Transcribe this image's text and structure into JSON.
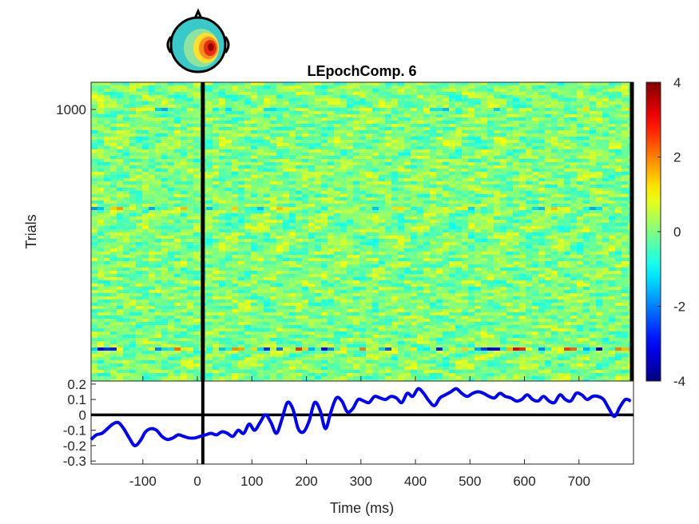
{
  "chart_data": [
    {
      "type": "heatmap",
      "title": "LEpochComp. 6",
      "ylabel": "Trials",
      "xlim": [
        -195,
        800
      ],
      "ylim": [
        0,
        1100
      ],
      "y_ticks": [
        {
          "value": 1000,
          "label": "1000"
        }
      ],
      "vertical_markers": [
        10,
        800
      ],
      "colormap": "jet",
      "colorbar": {
        "lim": [
          -4,
          4
        ],
        "ticks": [
          {
            "value": 4,
            "label": "4"
          },
          {
            "value": 2,
            "label": "2"
          },
          {
            "value": 0,
            "label": "0"
          },
          {
            "value": -2,
            "label": "-2"
          },
          {
            "value": -4,
            "label": "-4"
          }
        ]
      },
      "bands": [
        {
          "trials": [
            118,
            132
          ],
          "intensity": 3.0
        },
        {
          "trials": [
            640,
            650
          ],
          "intensity": 1.6
        },
        {
          "trials": [
            1000,
            1010
          ],
          "intensity": 1.4
        }
      ]
    },
    {
      "type": "line",
      "xlabel": "Time (ms)",
      "xlim": [
        -195,
        800
      ],
      "ylim": [
        -0.32,
        0.22
      ],
      "grid": false,
      "x_ticks": [
        {
          "value": -100,
          "label": "-100"
        },
        {
          "value": 0,
          "label": "0"
        },
        {
          "value": 100,
          "label": "100"
        },
        {
          "value": 200,
          "label": "200"
        },
        {
          "value": 300,
          "label": "300"
        },
        {
          "value": 400,
          "label": "400"
        },
        {
          "value": 500,
          "label": "500"
        },
        {
          "value": 600,
          "label": "600"
        },
        {
          "value": 700,
          "label": "700"
        }
      ],
      "y_ticks": [
        {
          "value": 0.2,
          "label": "0.2"
        },
        {
          "value": 0.1,
          "label": "0.1"
        },
        {
          "value": 0,
          "label": "0"
        },
        {
          "value": -0.1,
          "label": "-0.1"
        },
        {
          "value": -0.2,
          "label": "-0.2"
        },
        {
          "value": -0.3,
          "label": "-0.3"
        }
      ],
      "zero_line": 0,
      "vertical_markers": [
        10
      ],
      "series": [
        {
          "color": "#0000ff",
          "x": [
            -195,
            -185,
            -175,
            -165,
            -155,
            -145,
            -135,
            -125,
            -115,
            -105,
            -95,
            -85,
            -75,
            -65,
            -55,
            -45,
            -35,
            -25,
            -15,
            -5,
            5,
            15,
            25,
            35,
            45,
            55,
            65,
            75,
            85,
            95,
            105,
            115,
            125,
            135,
            145,
            155,
            165,
            175,
            185,
            195,
            205,
            215,
            225,
            235,
            245,
            255,
            265,
            275,
            285,
            295,
            305,
            315,
            325,
            335,
            345,
            355,
            365,
            375,
            385,
            395,
            405,
            415,
            425,
            435,
            445,
            455,
            465,
            475,
            485,
            495,
            505,
            515,
            525,
            535,
            545,
            555,
            565,
            575,
            585,
            595,
            605,
            615,
            625,
            635,
            645,
            655,
            665,
            675,
            685,
            695,
            705,
            715,
            725,
            735,
            745,
            755,
            765,
            775,
            785,
            795
          ],
          "y": [
            -0.16,
            -0.13,
            -0.12,
            -0.09,
            -0.06,
            -0.05,
            -0.09,
            -0.15,
            -0.2,
            -0.17,
            -0.11,
            -0.09,
            -0.1,
            -0.14,
            -0.16,
            -0.15,
            -0.13,
            -0.14,
            -0.15,
            -0.15,
            -0.14,
            -0.13,
            -0.12,
            -0.13,
            -0.11,
            -0.12,
            -0.14,
            -0.1,
            -0.12,
            -0.06,
            -0.1,
            -0.05,
            0.0,
            -0.05,
            -0.12,
            -0.03,
            0.08,
            0.04,
            -0.09,
            -0.11,
            -0.04,
            0.08,
            0.03,
            -0.09,
            0.02,
            0.11,
            0.09,
            0.02,
            0.04,
            0.1,
            0.09,
            0.08,
            0.12,
            0.11,
            0.1,
            0.12,
            0.11,
            0.08,
            0.14,
            0.12,
            0.17,
            0.14,
            0.09,
            0.06,
            0.11,
            0.13,
            0.15,
            0.17,
            0.14,
            0.12,
            0.14,
            0.15,
            0.14,
            0.12,
            0.11,
            0.14,
            0.12,
            0.11,
            0.09,
            0.1,
            0.13,
            0.1,
            0.09,
            0.12,
            0.09,
            0.08,
            0.13,
            0.1,
            0.09,
            0.14,
            0.13,
            0.1,
            0.12,
            0.12,
            0.1,
            0.04,
            -0.01,
            0.05,
            0.1,
            0.09
          ]
        }
      ]
    }
  ]
}
